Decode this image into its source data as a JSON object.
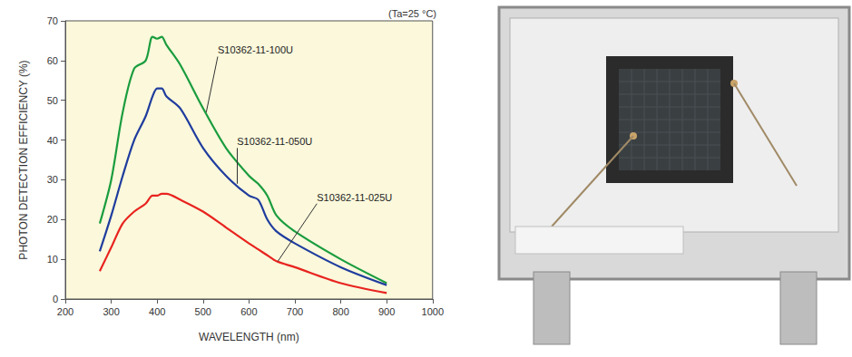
{
  "chart_data": {
    "type": "line",
    "title": "(Ta=25 °C)",
    "x_label": "WAVELENGTH (nm)",
    "y_label": "PHOTON DETECTION EFFICIENCY (%)",
    "x": [
      275,
      300,
      325,
      350,
      375,
      390,
      400,
      410,
      420,
      450,
      500,
      550,
      600,
      620,
      640,
      660,
      700,
      800,
      900
    ],
    "series": [
      {
        "name": "S10362-11-100U",
        "color": "#1a9c3e",
        "values": [
          19,
          30,
          47,
          58,
          60,
          66,
          65.5,
          66,
          64,
          59,
          48,
          38,
          31,
          29,
          26,
          21,
          17,
          10,
          4
        ]
      },
      {
        "name": "S10362-11-050U",
        "color": "#1f3c9e",
        "values": [
          12,
          21,
          31,
          40,
          46,
          51,
          53,
          53,
          51,
          48,
          38,
          31,
          26,
          25,
          20,
          17,
          14,
          8,
          3.5
        ]
      },
      {
        "name": "S10362-11-025U",
        "color": "#e8231f",
        "values": [
          7,
          13,
          19,
          22,
          24,
          26,
          26,
          26.5,
          26.5,
          25,
          22,
          18,
          14,
          12.5,
          11,
          9.5,
          8,
          4,
          1.5
        ]
      }
    ],
    "annotations": [
      {
        "text": "S10362-11-100U",
        "xy": [
          507,
          47
        ],
        "xytext": [
          532,
          61
        ]
      },
      {
        "text": "S10362-11-050U",
        "xy": [
          574,
          29
        ],
        "xytext": [
          574,
          38
        ]
      },
      {
        "text": "S10362-11-025U",
        "xy": [
          663,
          9.5
        ],
        "xytext": [
          748,
          24
        ]
      }
    ],
    "xlim": [
      200,
      1000
    ],
    "xticks": [
      200,
      300,
      400,
      500,
      600,
      700,
      800,
      900,
      1000
    ],
    "ylim": [
      0,
      70
    ],
    "yticks": [
      0,
      10,
      20,
      30,
      40,
      50,
      60,
      70
    ],
    "grid": false
  }
}
